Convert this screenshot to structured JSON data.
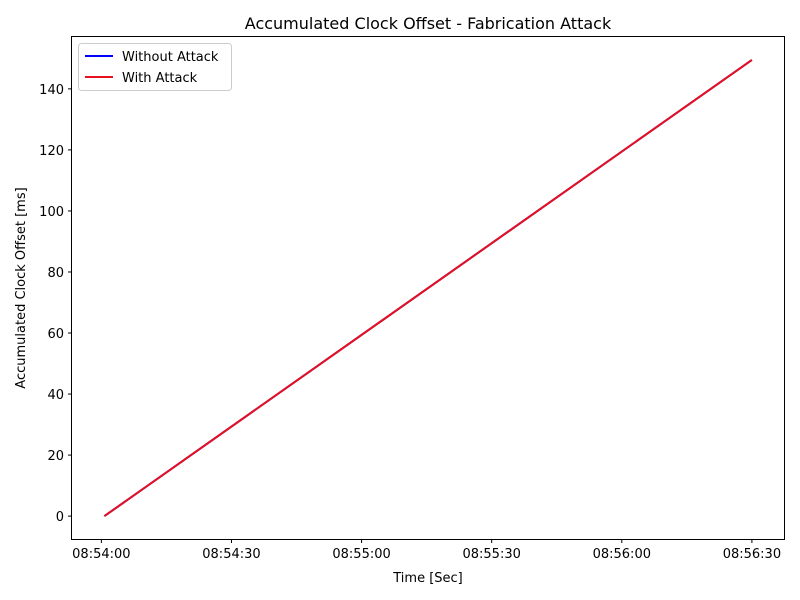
{
  "chart_data": {
    "type": "line",
    "title": "Accumulated Clock Offset - Fabrication Attack",
    "xlabel": "Time [Sec]",
    "ylabel": "Accumulated Clock Offset [ms]",
    "x_unit": "seconds after 08:54:00",
    "xlim": [
      -6.77,
      157.4
    ],
    "ylim": [
      -7.5,
      157
    ],
    "x_ticks": [
      0,
      30,
      60,
      90,
      120,
      150
    ],
    "x_tick_labels": [
      "08:54:00",
      "08:54:30",
      "08:55:00",
      "08:55:30",
      "08:56:00",
      "08:56:30"
    ],
    "y_ticks": [
      0,
      20,
      40,
      60,
      80,
      100,
      120,
      140
    ],
    "y_tick_labels": [
      "0",
      "20",
      "40",
      "60",
      "80",
      "100",
      "120",
      "140"
    ],
    "grid": false,
    "legend_position": "upper-left",
    "series": [
      {
        "name": "Without Attack",
        "color": "#0000ff",
        "x": [
          0.7,
          150.0
        ],
        "y": [
          0,
          149.5
        ]
      },
      {
        "name": "With Attack",
        "color": "#e8101c",
        "x": [
          0.7,
          150.0
        ],
        "y": [
          0,
          149.5
        ]
      }
    ]
  }
}
